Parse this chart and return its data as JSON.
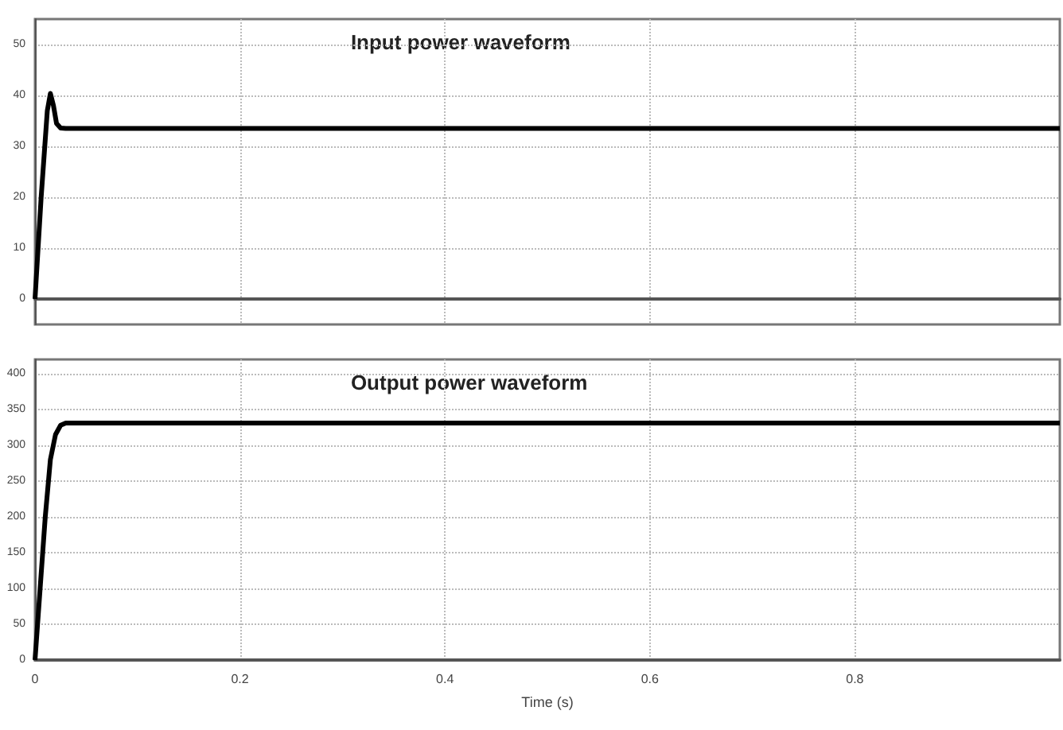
{
  "chart_data": [
    {
      "type": "line",
      "x": [
        0,
        0.006,
        0.012,
        0.015,
        0.018,
        0.021,
        0.025,
        0.03,
        0.2,
        0.4,
        0.6,
        0.8,
        1.0
      ],
      "series": [
        {
          "color": "#000000",
          "values": [
            0,
            20,
            37,
            40.4,
            38,
            34.5,
            33.6,
            33.5,
            33.5,
            33.5,
            33.5,
            33.5,
            33.5
          ]
        }
      ],
      "annotations": [
        "Input power waveform"
      ],
      "xlim": [
        0,
        1
      ],
      "xticks": [
        0,
        0.2,
        0.4,
        0.6,
        0.8
      ],
      "ylim": [
        -5,
        55
      ],
      "yticks": [
        0,
        10,
        20,
        30,
        40,
        50
      ],
      "grid": true,
      "tick_labels": "y",
      "line_style": "solid",
      "marker": "none"
    },
    {
      "type": "line",
      "x": [
        0,
        0.005,
        0.01,
        0.015,
        0.02,
        0.025,
        0.03,
        0.2,
        0.4,
        0.6,
        0.8,
        1.0
      ],
      "series": [
        {
          "color": "#000000",
          "values": [
            0,
            100,
            200,
            280,
            315,
            328,
            331,
            331,
            331,
            331,
            331,
            331
          ]
        }
      ],
      "annotations": [
        "Output power waveform"
      ],
      "xlabel": "Time (s)",
      "xlim": [
        0,
        1
      ],
      "xticks": [
        0,
        0.2,
        0.4,
        0.6,
        0.8
      ],
      "ylim": [
        0,
        420
      ],
      "yticks": [
        0,
        50,
        100,
        150,
        200,
        250,
        300,
        350,
        400
      ],
      "grid": true,
      "line_style": "solid",
      "marker": "none"
    }
  ]
}
